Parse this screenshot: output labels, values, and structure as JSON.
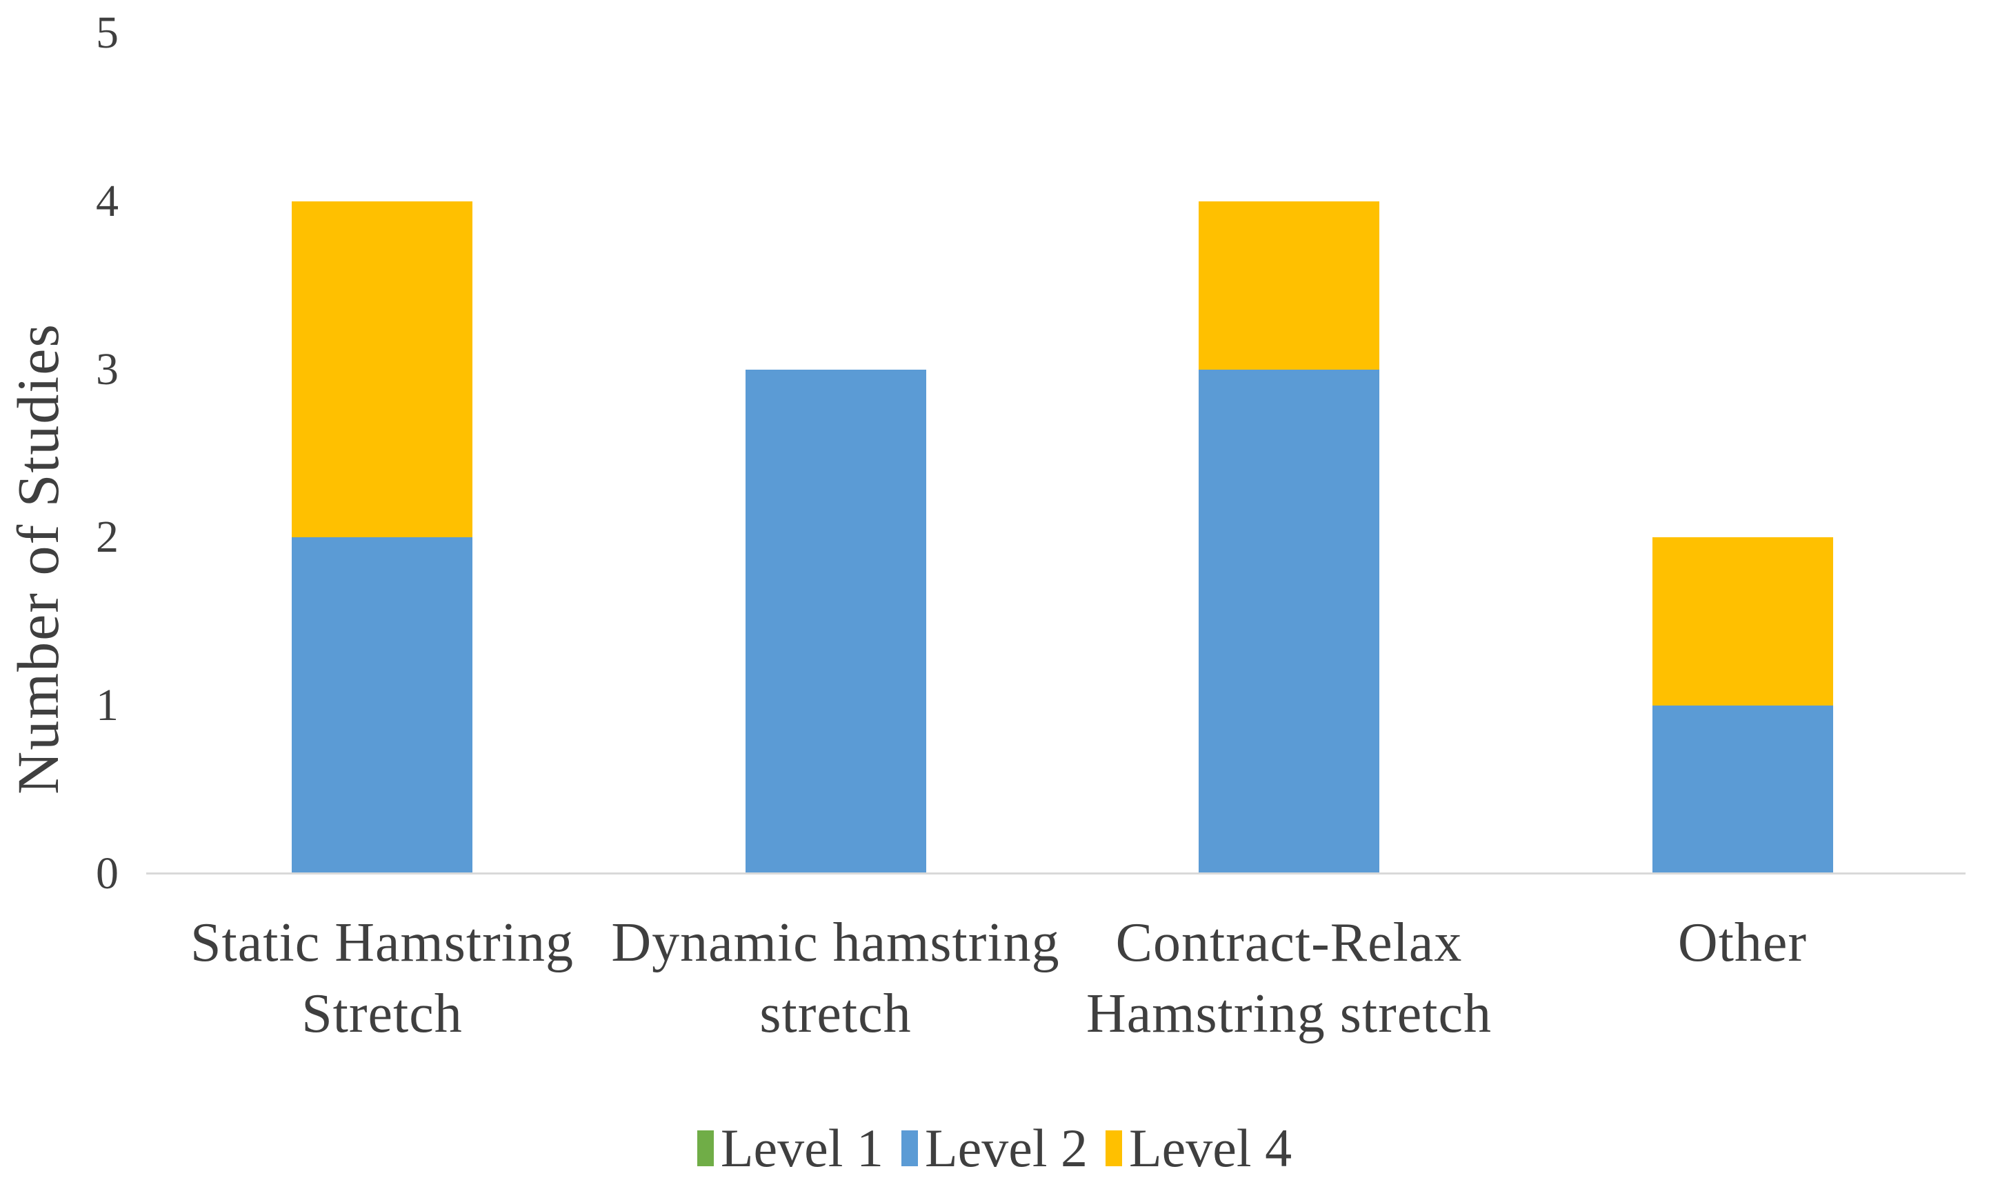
{
  "page": {
    "background": "#FFFFFF",
    "text_color": "#3F3F3F",
    "axis_line_color": "#D9D9D9"
  },
  "chart_data": {
    "type": "bar",
    "stacked": true,
    "title": "",
    "xlabel": "",
    "ylabel": "Number of Studies",
    "ylim": [
      0,
      5
    ],
    "yticks": [
      0,
      1,
      2,
      3,
      4,
      5
    ],
    "grid": false,
    "legend_position": "bottom",
    "categories": [
      "Static Hamstring Stretch",
      "Dynamic hamstring stretch",
      "Contract-Relax Hamstring stretch",
      "Other"
    ],
    "category_label_lines": [
      [
        "Static Hamstring",
        "Stretch"
      ],
      [
        "Dynamic hamstring",
        "stretch"
      ],
      [
        "Contract-Relax",
        "Hamstring stretch"
      ],
      [
        "Other"
      ]
    ],
    "series": [
      {
        "name": "Level 1",
        "color": "#70AD47",
        "values": [
          0,
          0,
          0,
          0
        ]
      },
      {
        "name": "Level 2",
        "color": "#5B9BD5",
        "values": [
          2,
          3,
          3,
          1
        ]
      },
      {
        "name": "Level 4",
        "color": "#FFC000",
        "values": [
          2,
          0,
          1,
          1
        ]
      }
    ]
  }
}
